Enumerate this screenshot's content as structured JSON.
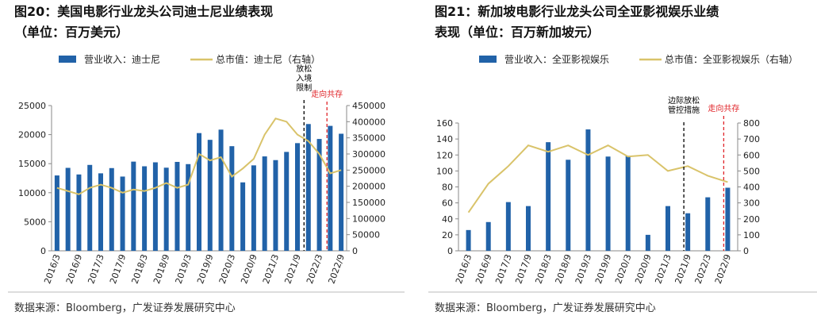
{
  "chart_data": [
    {
      "type": "bar",
      "title": [
        "图20：美国电影行业龙头公司迪士尼业绩表现",
        "（单位：百万美元）"
      ],
      "categories": [
        "2016/3",
        null,
        "2016/9",
        null,
        "2017/3",
        null,
        "2017/9",
        null,
        "2018/3",
        null,
        "2018/9",
        null,
        "2019/3",
        null,
        "2019/9",
        null,
        "2020/3",
        null,
        "2020/9",
        null,
        "2021/3",
        null,
        "2021/9",
        null,
        "2022/3",
        null,
        "2022/9"
      ],
      "series": [
        {
          "name": "营业收入：迪士尼",
          "type": "bar",
          "color": "#2162a8",
          "values": [
            12969,
            14277,
            13142,
            14784,
            13336,
            14238,
            12779,
            15351,
            14548,
            15230,
            14307,
            15303,
            14922,
            20262,
            19100,
            20858,
            18009,
            11779,
            14707,
            16249,
            15613,
            17022,
            18534,
            21819,
            19249,
            21504,
            20150
          ]
        },
        {
          "name": "总市值：迪士尼（右轴）",
          "type": "line",
          "axis": "y2",
          "color": "#d9c36a",
          "values": [
            195000,
            185000,
            175000,
            195000,
            205000,
            195000,
            180000,
            190000,
            185000,
            195000,
            210000,
            195000,
            205000,
            300000,
            280000,
            290000,
            230000,
            255000,
            285000,
            360000,
            410000,
            400000,
            360000,
            340000,
            300000,
            240000,
            250000
          ]
        }
      ],
      "ylim": [
        0,
        25000
      ],
      "yticks": [
        0,
        5000,
        10000,
        15000,
        20000,
        25000
      ],
      "y2lim": [
        0,
        450000
      ],
      "y2ticks": [
        0,
        50000,
        100000,
        150000,
        200000,
        250000,
        300000,
        350000,
        400000,
        450000
      ],
      "annotations": [
        {
          "text": "放松入境限制",
          "color": "#000000"
        },
        {
          "text": "走向共存",
          "color": "#e0262b"
        }
      ],
      "source": "数据来源：Bloomberg，广发证券发展研究中心"
    },
    {
      "type": "bar",
      "title": [
        "图21：新加坡电影行业龙头公司全亚影视娱乐业绩",
        "表现（单位：百万新加坡元）"
      ],
      "categories": [
        "2016/3",
        "2016/9",
        "2017/3",
        "2017/9",
        "2018/3",
        "2018/9",
        "2019/3",
        "2019/9",
        "2020/3",
        "2020/9",
        "2021/3",
        "2021/9",
        "2022/3",
        "2022/9"
      ],
      "series": [
        {
          "name": "营业收入：全亚影视娱乐",
          "type": "bar",
          "color": "#2162a8",
          "values": [
            26,
            36,
            61,
            56,
            136,
            114,
            152,
            118,
            119,
            20,
            56,
            47,
            67,
            79
          ]
        },
        {
          "name": "总市值：全亚影视娱乐（右轴）",
          "type": "line",
          "axis": "y2",
          "color": "#d9c36a",
          "values": [
            240,
            420,
            530,
            660,
            620,
            660,
            600,
            660,
            590,
            600,
            500,
            530,
            470,
            430
          ]
        }
      ],
      "ylim": [
        0,
        160
      ],
      "yticks": [
        0,
        20,
        40,
        60,
        80,
        100,
        120,
        140,
        160
      ],
      "y2lim": [
        0,
        800
      ],
      "y2ticks": [
        0,
        100,
        200,
        300,
        400,
        500,
        600,
        700,
        800
      ],
      "annotations": [
        {
          "text": "边际放松管控措施",
          "color": "#000000"
        },
        {
          "text": "走向共存",
          "color": "#e0262b"
        }
      ],
      "source": "数据来源：Bloomberg，广发证券发展研究中心"
    }
  ]
}
